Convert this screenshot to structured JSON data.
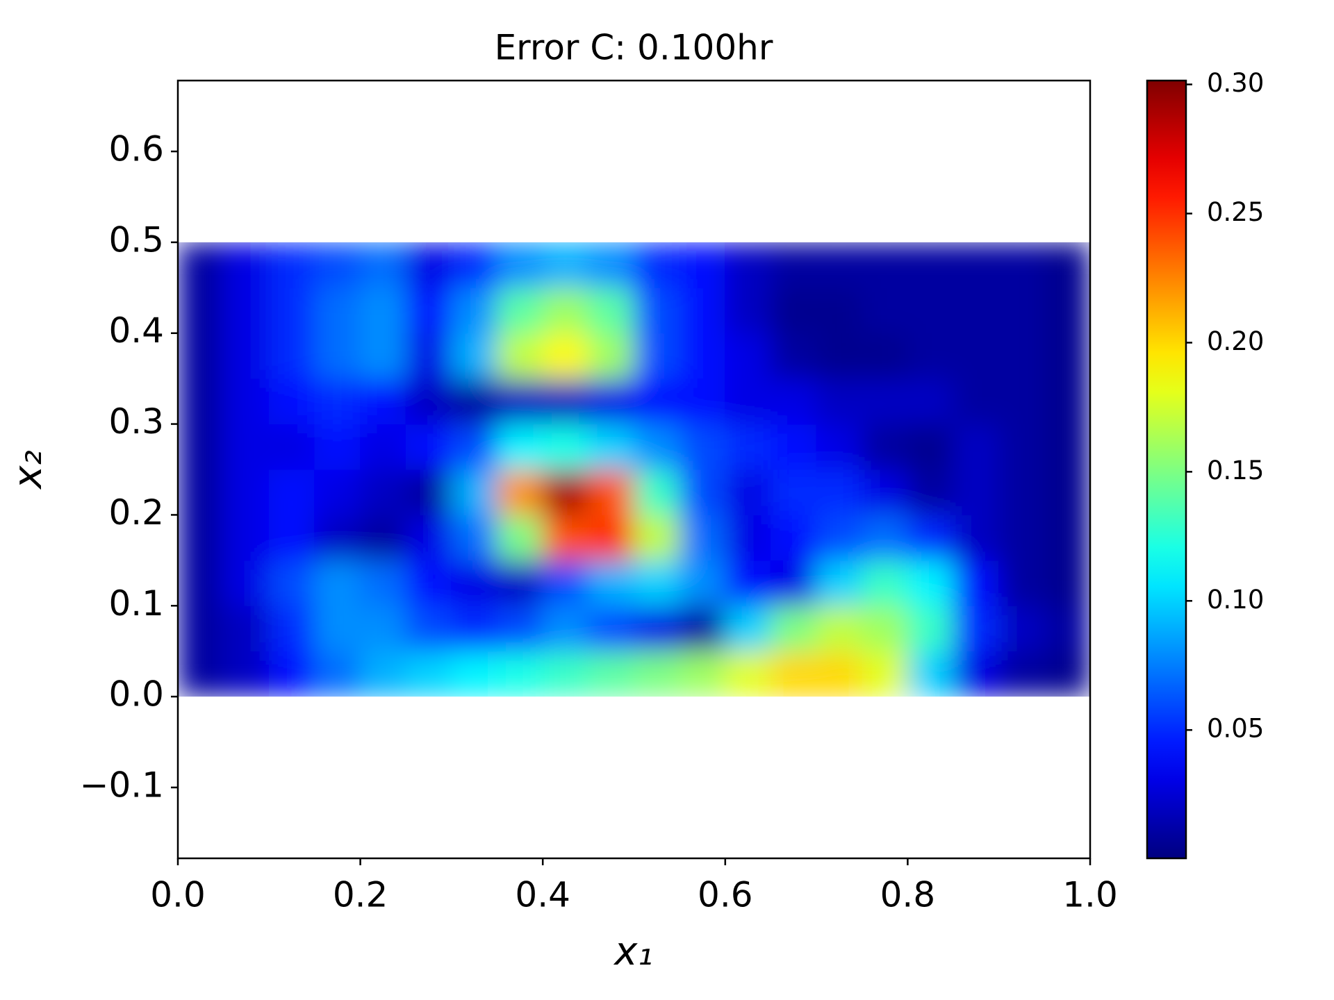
{
  "chart_data": {
    "type": "heatmap",
    "title": "Error C: 0.100hr",
    "x_label": "x₁",
    "y_label": "x₂",
    "colormap": "jet",
    "xlim": [
      0,
      1
    ],
    "ylim": [
      -0.178,
      0.678
    ],
    "xticks": [
      {
        "value": 0,
        "label": "0.0"
      },
      0.2,
      0.4,
      0.6,
      0.8,
      {
        "value": 1,
        "label": "1.0"
      }
    ],
    "yticks": [
      {
        "value": -0.1,
        "label": "−0.1"
      },
      {
        "value": 0,
        "label": "0.0"
      },
      0.1,
      0.2,
      0.3,
      0.4,
      0.5,
      0.6
    ],
    "colorbar": {
      "lim": [
        0.0003,
        0.3015
      ],
      "ticks": [
        0.05,
        {
          "value": 0.1,
          "label": "0.10"
        },
        0.15,
        {
          "value": 0.2,
          "label": "0.20"
        },
        0.25,
        {
          "value": 0.3,
          "label": "0.30"
        }
      ]
    },
    "x": [
      0.025,
      0.075,
      0.125,
      0.175,
      0.225,
      0.275,
      0.325,
      0.375,
      0.425,
      0.475,
      0.525,
      0.575,
      0.625,
      0.675,
      0.725,
      0.775,
      0.825,
      0.875,
      0.925,
      0.975
    ],
    "y": [
      0.025,
      0.075,
      0.125,
      0.175,
      0.225,
      0.275,
      0.325,
      0.375,
      0.425,
      0.475
    ],
    "z": [
      [
        0.01,
        0.02,
        0.04,
        0.07,
        0.09,
        0.1,
        0.11,
        0.12,
        0.13,
        0.14,
        0.15,
        0.16,
        0.18,
        0.2,
        0.2,
        0.18,
        0.1,
        0.03,
        0.01,
        0.005
      ],
      [
        0.01,
        0.02,
        0.05,
        0.08,
        0.08,
        0.06,
        0.05,
        0.06,
        0.08,
        0.06,
        0.03,
        0.01,
        0.1,
        0.15,
        0.17,
        0.16,
        0.13,
        0.05,
        0.02,
        0.01
      ],
      [
        0.01,
        0.03,
        0.06,
        0.08,
        0.07,
        0.04,
        0.03,
        0.02,
        0.06,
        0.09,
        0.1,
        0.08,
        0.04,
        0.03,
        0.1,
        0.13,
        0.11,
        0.04,
        0.01,
        0.005
      ],
      [
        0.01,
        0.03,
        0.04,
        0.02,
        0.01,
        0.03,
        0.07,
        0.15,
        0.24,
        0.25,
        0.17,
        0.07,
        0.03,
        0.04,
        0.06,
        0.07,
        0.05,
        0.02,
        0.01,
        0.005
      ],
      [
        0.01,
        0.03,
        0.04,
        0.03,
        0.02,
        0.01,
        0.09,
        0.22,
        0.29,
        0.24,
        0.13,
        0.06,
        0.03,
        0.05,
        0.05,
        0.03,
        0.01,
        0.02,
        0.01,
        0.005
      ],
      [
        0.01,
        0.03,
        0.03,
        0.04,
        0.03,
        0.04,
        0.06,
        0.11,
        0.12,
        0.1,
        0.08,
        0.06,
        0.05,
        0.04,
        0.03,
        0.01,
        0.005,
        0.02,
        0.01,
        0.005
      ],
      [
        0.01,
        0.03,
        0.04,
        0.05,
        0.04,
        0.02,
        0.01,
        0.02,
        0.02,
        0.03,
        0.04,
        0.04,
        0.03,
        0.03,
        0.02,
        0.02,
        0.02,
        0.01,
        0.01,
        0.005
      ],
      [
        0.01,
        0.03,
        0.05,
        0.07,
        0.08,
        0.03,
        0.09,
        0.17,
        0.19,
        0.16,
        0.06,
        0.04,
        0.03,
        0.01,
        0.005,
        0.005,
        0.01,
        0.01,
        0.01,
        0.005
      ],
      [
        0.01,
        0.03,
        0.05,
        0.07,
        0.08,
        0.04,
        0.08,
        0.14,
        0.16,
        0.14,
        0.06,
        0.04,
        0.02,
        0.005,
        0.005,
        0.01,
        0.01,
        0.01,
        0.01,
        0.005
      ],
      [
        0.01,
        0.03,
        0.05,
        0.06,
        0.07,
        0.03,
        0.05,
        0.08,
        0.09,
        0.08,
        0.05,
        0.04,
        0.02,
        0.01,
        0.01,
        0.01,
        0.01,
        0.01,
        0.01,
        0.005
      ]
    ]
  }
}
